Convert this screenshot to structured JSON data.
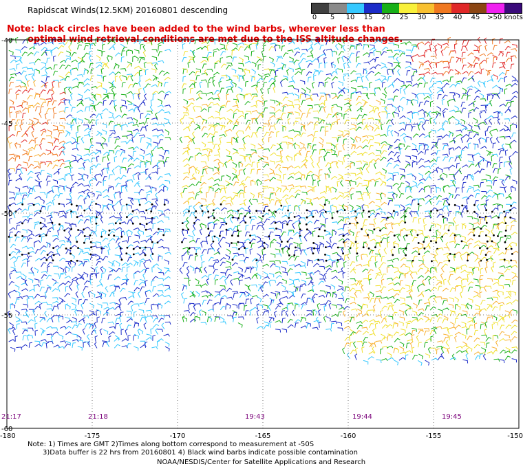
{
  "header": {
    "title": "Rapidscat Winds(12.5KM) 20160801 descending",
    "note_line1": "Note: black circles have been added to the wind barbs, wherever less than",
    "note_line2": "optimal wind retrieval conditions are met due to the ISS altitude changes."
  },
  "color_scale": {
    "labels": [
      "0",
      "5",
      "10",
      "15",
      "20",
      "25",
      "30",
      "35",
      "40",
      "45",
      ">50 knots"
    ],
    "colors": [
      "#404040",
      "#8a8a8a",
      "#35c8ff",
      "#1c2cc8",
      "#18b018",
      "#f8f03a",
      "#f8c030",
      "#f07820",
      "#e02828",
      "#8b4513",
      "#f020f0",
      "#3a0a7a"
    ]
  },
  "map": {
    "lat_labels": [
      "-40",
      "-45",
      "-50",
      "-55",
      "-60"
    ],
    "lon_labels": [
      "-180",
      "-175",
      "-170",
      "-165",
      "-160",
      "-155",
      "-150"
    ],
    "time_labels": [
      "21:17",
      "21:18",
      "19:43",
      "19:44",
      "19:45"
    ]
  },
  "footer": {
    "line1": "Note: 1) Times are GMT 2)Times along bottom correspond to measurement at -50S",
    "line2": "3)Data buffer is 22 hrs from 20160801 4) Black wind barbs indicate possible contamination",
    "line3": "NOAA/NESDIS/Center for Satellite Applications and Research"
  }
}
